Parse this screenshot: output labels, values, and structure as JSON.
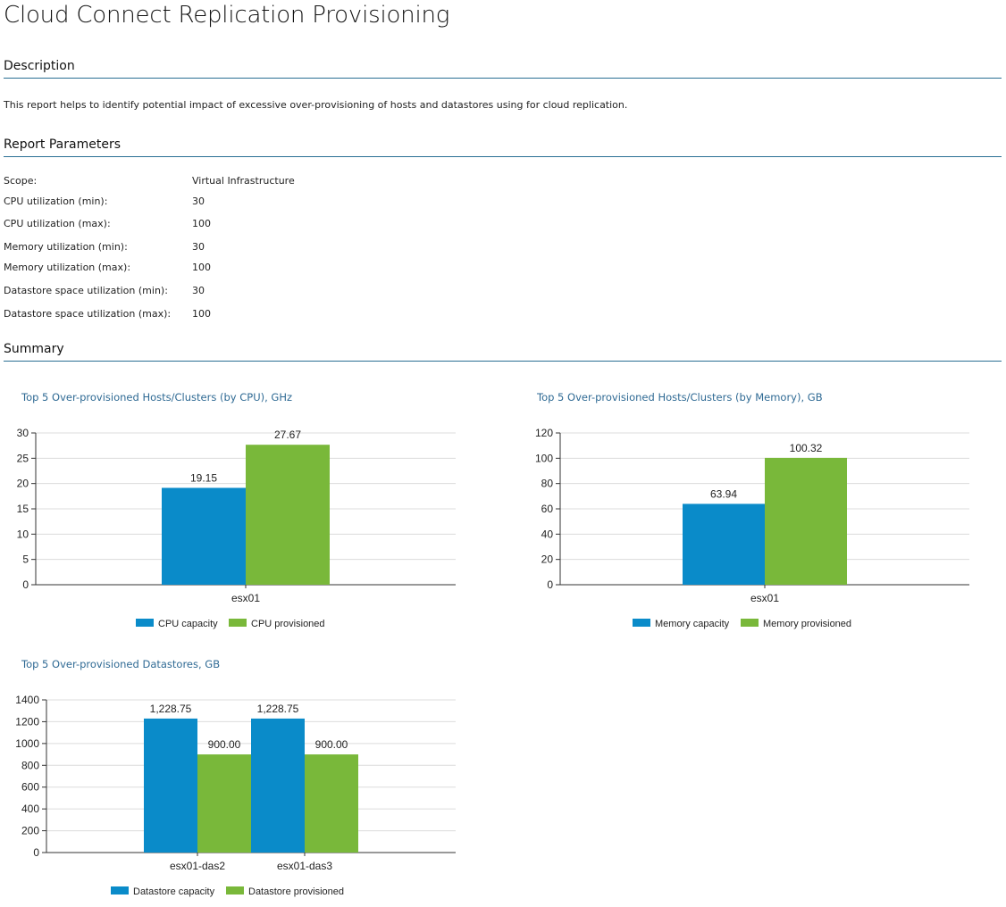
{
  "page": {
    "title": "Cloud Connect Replication Provisioning"
  },
  "description": {
    "heading": "Description",
    "text": "This report helps to identify potential impact of excessive over-provisioning of hosts and datastores using for cloud replication."
  },
  "parameters": {
    "heading": "Report Parameters",
    "items": [
      {
        "label": "Scope:",
        "value": "Virtual Infrastructure"
      },
      {
        "label": "CPU utilization (min):",
        "value": "30"
      },
      {
        "label": "CPU utilization (max):",
        "value": "100"
      },
      {
        "label": "Memory utilization (min):",
        "value": "30"
      },
      {
        "label": "Memory utilization (max):",
        "value": "100"
      },
      {
        "label": "Datastore space utilization (min):",
        "value": "30"
      },
      {
        "label": "Datastore space utilization (max):",
        "value": "100"
      }
    ]
  },
  "summary": {
    "heading": "Summary"
  },
  "colors": {
    "capacity": "#0a8bc9",
    "provisioned": "#79b83a",
    "heading_rule": "#2a6f94",
    "chart_title": "#2f6a94"
  },
  "chart_data": [
    {
      "type": "bar",
      "title": "Top 5 Over-provisioned Hosts/Clusters (by CPU), GHz",
      "categories": [
        "esx01"
      ],
      "series": [
        {
          "name": "CPU capacity",
          "values": [
            19.15
          ],
          "labels": [
            "19.15"
          ]
        },
        {
          "name": "CPU provisioned",
          "values": [
            27.67
          ],
          "labels": [
            "27.67"
          ]
        }
      ],
      "ylim": [
        0,
        30
      ],
      "yticks": [
        0,
        5,
        10,
        15,
        20,
        25,
        30
      ],
      "ytick_labels": [
        "0",
        "5",
        "10",
        "15",
        "20",
        "25",
        "30"
      ],
      "grid": true,
      "legend": "bottom"
    },
    {
      "type": "bar",
      "title": "Top 5 Over-provisioned Hosts/Clusters (by Memory), GB",
      "categories": [
        "esx01"
      ],
      "series": [
        {
          "name": "Memory capacity",
          "values": [
            63.94
          ],
          "labels": [
            "63.94"
          ]
        },
        {
          "name": "Memory provisioned",
          "values": [
            100.32
          ],
          "labels": [
            "100.32"
          ]
        }
      ],
      "ylim": [
        0,
        120
      ],
      "yticks": [
        0,
        20,
        40,
        60,
        80,
        100,
        120
      ],
      "ytick_labels": [
        "0",
        "20",
        "40",
        "60",
        "80",
        "100",
        "120"
      ],
      "grid": true,
      "legend": "bottom"
    },
    {
      "type": "bar",
      "title": "Top 5 Over-provisioned Datastores, GB",
      "categories": [
        "esx01-das2",
        "esx01-das3"
      ],
      "series": [
        {
          "name": "Datastore capacity",
          "values": [
            1228.75,
            1228.75
          ],
          "labels": [
            "1,228.75",
            "1,228.75"
          ]
        },
        {
          "name": "Datastore provisioned",
          "values": [
            900.0,
            900.0
          ],
          "labels": [
            "900.00",
            "900.00"
          ]
        }
      ],
      "ylim": [
        0,
        1400
      ],
      "yticks": [
        0,
        200,
        400,
        600,
        800,
        1000,
        1200,
        1400
      ],
      "ytick_labels": [
        "0",
        "200",
        "400",
        "600",
        "800",
        "1000",
        "1200",
        "1400"
      ],
      "grid": true,
      "legend": "bottom"
    }
  ]
}
